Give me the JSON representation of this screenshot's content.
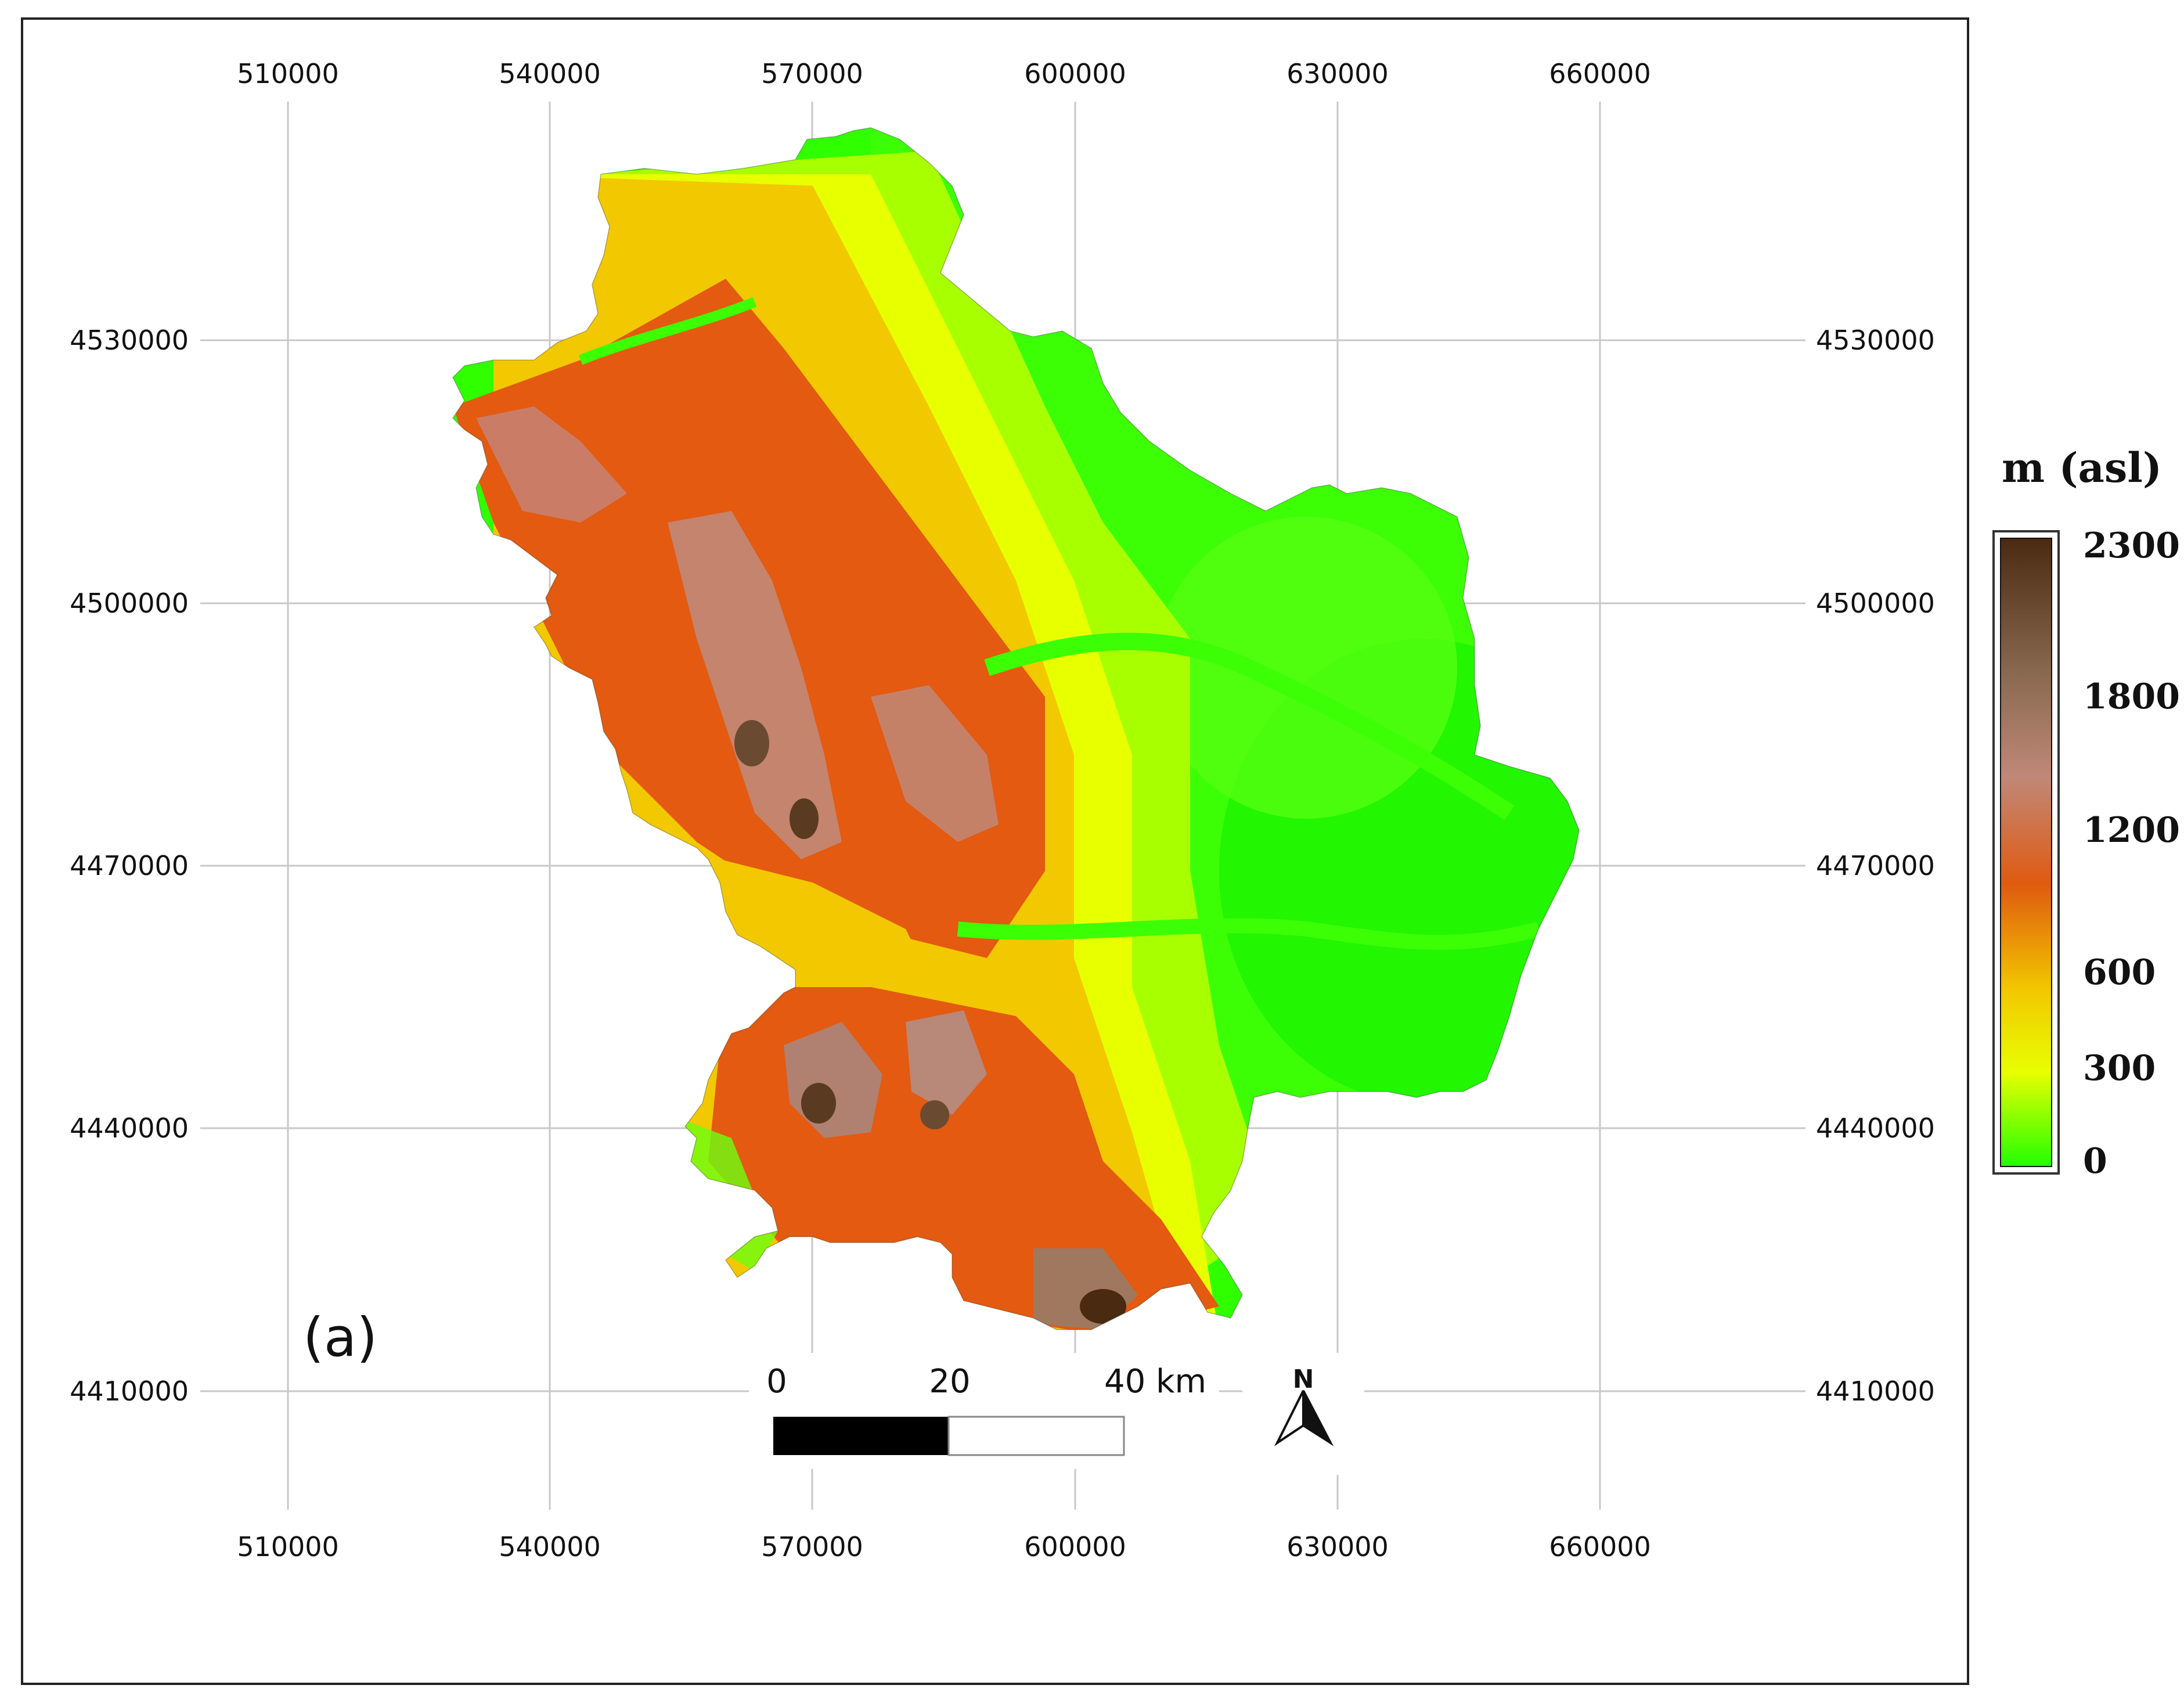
{
  "map": {
    "panel_label": "(a)",
    "x_ticks": [
      "510000",
      "540000",
      "570000",
      "600000",
      "630000",
      "660000"
    ],
    "y_ticks": [
      "4530000",
      "4500000",
      "4470000",
      "4440000",
      "4410000"
    ],
    "scale_bar": {
      "labels": [
        "0",
        "20",
        "40 km"
      ]
    },
    "north_arrow": {
      "label": "N",
      "icon": "north-arrow-icon"
    },
    "legend": {
      "title": "m (asl)",
      "labels": [
        "2300",
        "1800",
        "1200",
        "600",
        "300",
        "0"
      ],
      "colors": [
        "#4a2a10",
        "#8a6a50",
        "#c08878",
        "#e05a10",
        "#f2c800",
        "#e8ff00",
        "#22ff00"
      ]
    }
  }
}
